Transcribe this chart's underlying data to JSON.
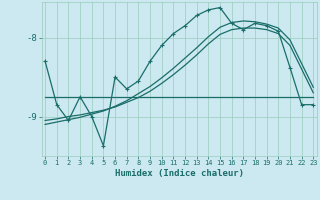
{
  "xlabel": "Humidex (Indice chaleur)",
  "bg_color": "#cce8f0",
  "grid_color": "#99ccbb",
  "line_color": "#1a6e6a",
  "xlim": [
    -0.3,
    23.3
  ],
  "ylim": [
    -9.5,
    -7.55
  ],
  "yticks": [
    -9,
    -8
  ],
  "xticks": [
    0,
    1,
    2,
    3,
    4,
    5,
    6,
    7,
    8,
    9,
    10,
    11,
    12,
    13,
    14,
    15,
    16,
    17,
    18,
    19,
    20,
    21,
    22,
    23
  ],
  "series_marker_x": [
    0,
    1,
    2,
    3,
    4,
    5,
    6,
    7,
    8,
    9,
    10,
    11,
    12,
    13,
    14,
    15,
    16,
    17,
    18,
    19,
    20,
    21,
    22,
    23
  ],
  "series_marker_y": [
    -8.3,
    -8.85,
    -9.05,
    -8.75,
    -9.0,
    -9.37,
    -8.5,
    -8.65,
    -8.55,
    -8.3,
    -8.1,
    -7.95,
    -7.85,
    -7.72,
    -7.65,
    -7.62,
    -7.82,
    -7.9,
    -7.82,
    -7.85,
    -7.92,
    -8.38,
    -8.85,
    -8.85
  ],
  "series_flat_x": [
    0,
    1,
    2,
    3,
    4,
    5,
    6,
    7,
    8,
    9,
    10,
    11,
    12,
    13,
    14,
    15,
    16,
    17,
    18,
    19,
    20,
    21,
    22,
    23
  ],
  "series_flat_y": [
    -8.75,
    -8.75,
    -8.75,
    -8.75,
    -8.75,
    -8.75,
    -8.75,
    -8.75,
    -8.75,
    -8.75,
    -8.75,
    -8.75,
    -8.75,
    -8.75,
    -8.75,
    -8.75,
    -8.75,
    -8.75,
    -8.75,
    -8.75,
    -8.75,
    -8.75,
    -8.75,
    -8.75
  ],
  "series_trend1_x": [
    0,
    1,
    2,
    3,
    4,
    5,
    6,
    7,
    8,
    9,
    10,
    11,
    12,
    13,
    14,
    15,
    16,
    17,
    18,
    19,
    20,
    21,
    22,
    23
  ],
  "series_trend1_y": [
    -9.05,
    -9.03,
    -9.0,
    -8.98,
    -8.95,
    -8.92,
    -8.88,
    -8.82,
    -8.76,
    -8.68,
    -8.58,
    -8.47,
    -8.35,
    -8.22,
    -8.08,
    -7.96,
    -7.9,
    -7.88,
    -7.88,
    -7.9,
    -7.95,
    -8.1,
    -8.4,
    -8.7
  ],
  "series_trend2_x": [
    0,
    1,
    2,
    3,
    4,
    5,
    6,
    7,
    8,
    9,
    10,
    11,
    12,
    13,
    14,
    15,
    16,
    17,
    18,
    19,
    20,
    21,
    22,
    23
  ],
  "series_trend2_y": [
    -9.1,
    -9.07,
    -9.04,
    -9.01,
    -8.97,
    -8.93,
    -8.87,
    -8.8,
    -8.71,
    -8.62,
    -8.51,
    -8.39,
    -8.26,
    -8.13,
    -7.99,
    -7.87,
    -7.81,
    -7.79,
    -7.8,
    -7.83,
    -7.88,
    -8.03,
    -8.33,
    -8.63
  ]
}
